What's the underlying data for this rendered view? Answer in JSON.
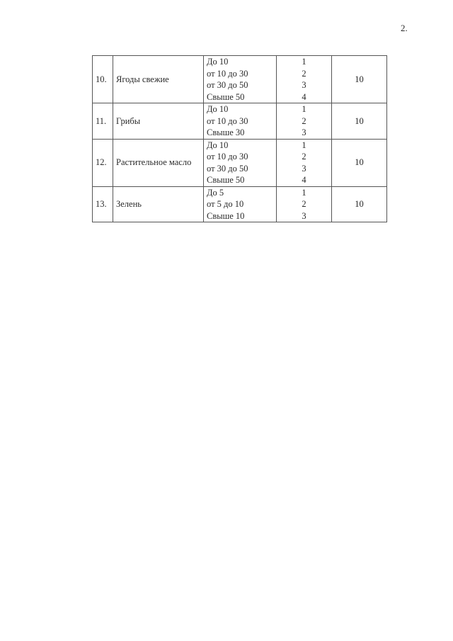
{
  "page_number": "2.",
  "rows": [
    {
      "num": "10.",
      "name": "Ягоды свежие",
      "ranges": [
        "До 10",
        "от 10 до 30",
        "от 30 до 50",
        "Свыше 50"
      ],
      "points": [
        "1",
        "2",
        "3",
        "4"
      ],
      "max": "10"
    },
    {
      "num": "11.",
      "name": "Грибы",
      "ranges": [
        "До 10",
        "от 10 до 30",
        "Свыше 30"
      ],
      "points": [
        "1",
        "2",
        "3"
      ],
      "max": "10"
    },
    {
      "num": "12.",
      "name": "Растительное масло",
      "ranges": [
        "До 10",
        "от 10 до 30",
        "от 30 до 50",
        "Свыше 50"
      ],
      "points": [
        "1",
        "2",
        "3",
        "4"
      ],
      "max": "10"
    },
    {
      "num": "13.",
      "name": "Зелень",
      "ranges": [
        "До 5",
        "от 5 до 10",
        "Свыше 10"
      ],
      "points": [
        "1",
        "2",
        "3"
      ],
      "max": "10"
    }
  ]
}
